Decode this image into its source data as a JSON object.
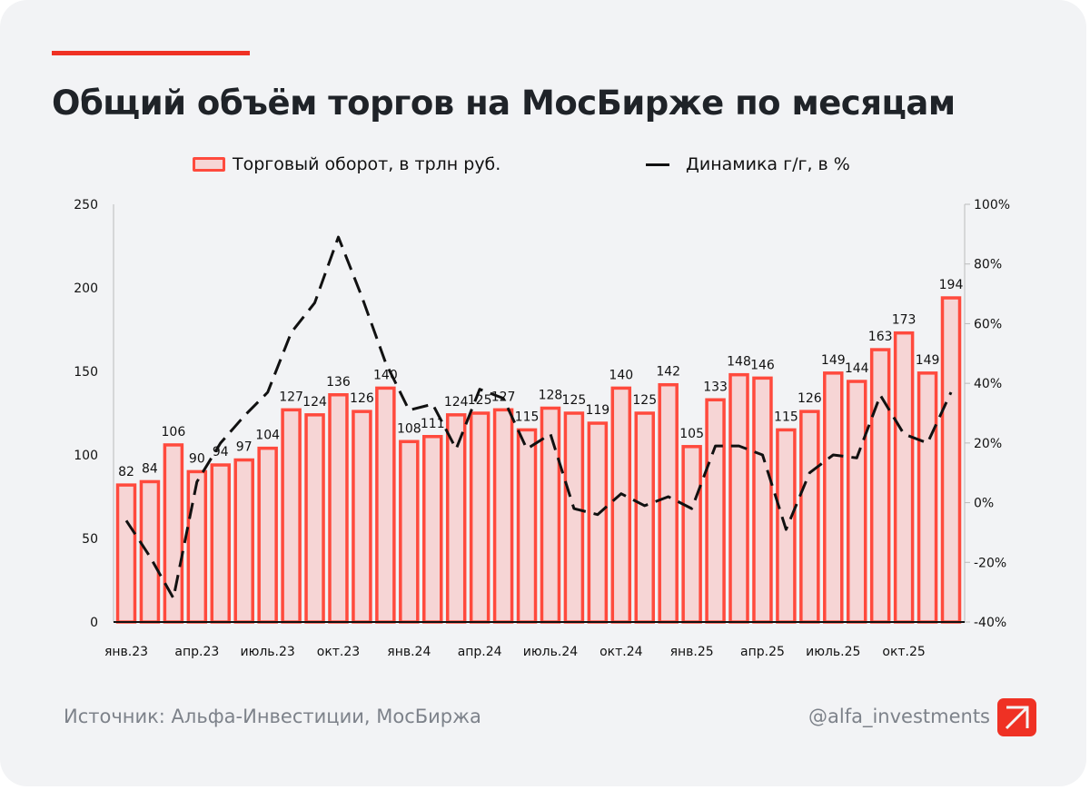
{
  "title": "Общий объём торгов на МосБирже по месяцам",
  "footer": {
    "source": "Источник: Альфа-Инвестиции, МосБиржа",
    "handle": "@alfa_investments"
  },
  "colors": {
    "accent": "#ef3124",
    "bar_fill": "#f6d5d5",
    "bar_stroke": "#ff4a3d",
    "line": "#111111",
    "background": "#f2f3f5"
  },
  "chart_data": {
    "type": "bar+line",
    "title": "Общий объём торгов на МосБирже по месяцам",
    "legend": {
      "placement": "top",
      "entries": [
        "Торговый оборот, в трлн руб.",
        "Динамика г/г, в %"
      ]
    },
    "categories": [
      "янв.23",
      "фев.23",
      "мар.23",
      "апр.23",
      "май.23",
      "июнь.23",
      "июль.23",
      "авг.23",
      "сен.23",
      "окт.23",
      "ноя.23",
      "дек.23",
      "янв.24",
      "фев.24",
      "мар.24",
      "апр.24",
      "май.24",
      "июнь.24",
      "июль.24",
      "авг.24",
      "сен.24",
      "окт.24",
      "ноя.24",
      "дек.24",
      "янв.25",
      "фев.25",
      "мар.25",
      "апр.25",
      "май.25",
      "июнь.25",
      "июль.25",
      "авг.25",
      "сен.25",
      "окт.25",
      "ноя.25",
      "дек.25"
    ],
    "x_tick_labels": [
      "янв.23",
      "апр.23",
      "июль.23",
      "окт.23",
      "янв.24",
      "апр.24",
      "июль.24",
      "окт.24",
      "янв.25",
      "апр.25",
      "июль.25",
      "окт.25"
    ],
    "series": [
      {
        "name": "Торговый оборот, в трлн руб.",
        "type": "bar",
        "axis": "left",
        "values": [
          82,
          84,
          106,
          90,
          94,
          97,
          104,
          127,
          124,
          136,
          126,
          140,
          108,
          111,
          124,
          125,
          127,
          115,
          128,
          125,
          119,
          140,
          125,
          142,
          105,
          133,
          148,
          146,
          115,
          126,
          149,
          144,
          163,
          173,
          149,
          194
        ]
      },
      {
        "name": "Динамика г/г, в %",
        "type": "line",
        "style": "dashed",
        "axis": "right",
        "values": [
          -6,
          -18,
          -32,
          7,
          20,
          29,
          37,
          57,
          67,
          89,
          69,
          47,
          31,
          33,
          18,
          38,
          35,
          18,
          23,
          -2,
          -4,
          3,
          -1,
          2,
          -2,
          19,
          19,
          16,
          -9,
          10,
          16,
          15,
          36,
          23,
          20,
          37
        ]
      }
    ],
    "y_left": {
      "range": [
        0,
        250
      ],
      "ticks": [
        "0",
        "50",
        "100",
        "150",
        "200",
        "250"
      ]
    },
    "y_right": {
      "range": [
        -40,
        100
      ],
      "ticks": [
        "-40%",
        "-20%",
        "0%",
        "20%",
        "40%",
        "60%",
        "80%",
        "100%"
      ]
    },
    "grid": false
  }
}
